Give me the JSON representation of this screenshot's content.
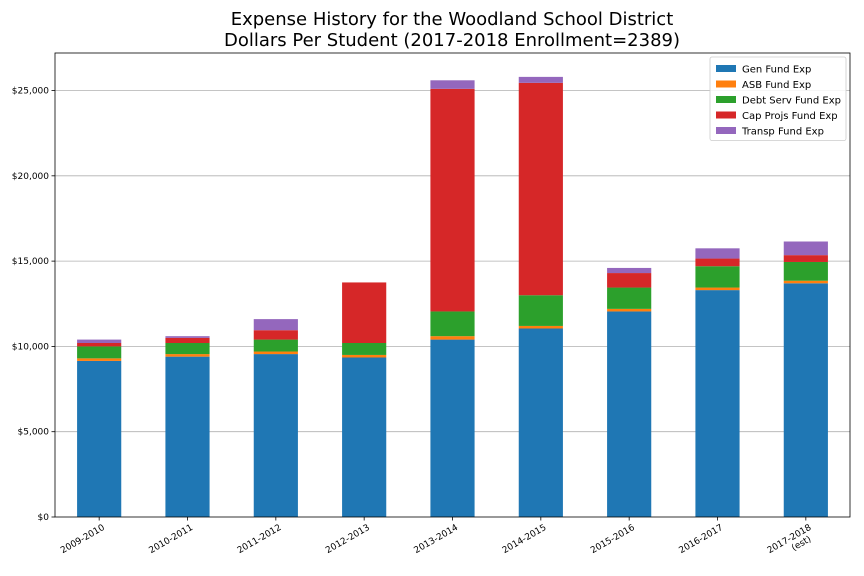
{
  "chart_data": {
    "type": "bar",
    "stacked": true,
    "title_lines": [
      "Expense History for the Woodland School District",
      "Dollars Per Student (2017-2018 Enrollment=2389)"
    ],
    "xlabel": "",
    "ylabel": "",
    "categories": [
      "2009-2010",
      "2010-2011",
      "2011-2012",
      "2012-2013",
      "2013-2014",
      "2014-2015",
      "2015-2016",
      "2016-2017",
      "2017-2018\n(est)"
    ],
    "ylim": [
      0,
      27200
    ],
    "yticks": [
      0,
      5000,
      10000,
      15000,
      20000,
      25000
    ],
    "ytick_labels": [
      "$0",
      "$5,000",
      "$10,000",
      "$15,000",
      "$20,000",
      "$25,000"
    ],
    "grid": "horizontal",
    "legend_position": "top-right",
    "series": [
      {
        "name": "Gen Fund Exp",
        "color": "#1f77b4",
        "values": [
          9150,
          9400,
          9550,
          9350,
          10400,
          11050,
          12050,
          13300,
          13700
        ]
      },
      {
        "name": "ASB Fund Exp",
        "color": "#ff7f0e",
        "values": [
          150,
          150,
          150,
          150,
          200,
          150,
          150,
          150,
          150
        ]
      },
      {
        "name": "Debt Serv Fund Exp",
        "color": "#2ca02c",
        "values": [
          700,
          650,
          700,
          700,
          1450,
          1800,
          1250,
          1250,
          1100
        ]
      },
      {
        "name": "Cap Projs Fund Exp",
        "color": "#d62728",
        "values": [
          200,
          300,
          550,
          3550,
          13050,
          12450,
          850,
          450,
          400
        ]
      },
      {
        "name": "Transp Fund Exp",
        "color": "#9467bd",
        "values": [
          200,
          100,
          650,
          0,
          500,
          350,
          300,
          600,
          800
        ]
      }
    ]
  }
}
